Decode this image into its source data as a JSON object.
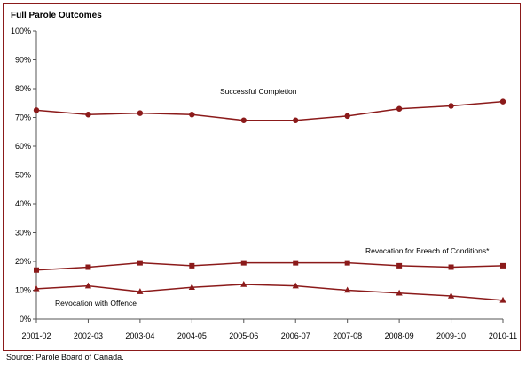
{
  "chart_data": {
    "type": "line",
    "title": "Full Parole Outcomes",
    "xlabel": "",
    "ylabel": "",
    "categories": [
      "2001-02",
      "2002-03",
      "2003-04",
      "2004-05",
      "2005-06",
      "2006-07",
      "2007-08",
      "2008-09",
      "2009-10",
      "2010-11"
    ],
    "y_ticks": [
      "0%",
      "10%",
      "20%",
      "30%",
      "40%",
      "50%",
      "60%",
      "70%",
      "80%",
      "90%",
      "100%"
    ],
    "ylim": [
      0,
      100
    ],
    "y_unit": "%",
    "grid": false,
    "legend": "none (series labelled directly on plot)",
    "line_color": "#8b1a1a",
    "series": [
      {
        "name": "Successful Completion",
        "marker": "circle",
        "values": [
          72.5,
          71,
          71.5,
          71,
          69,
          69,
          70.5,
          73,
          74,
          75.5
        ]
      },
      {
        "name": "Revocation for Breach of Conditions*",
        "marker": "square",
        "values": [
          17,
          18,
          19.5,
          18.5,
          19.5,
          19.5,
          19.5,
          18.5,
          18,
          18.5
        ]
      },
      {
        "name": "Revocation with Offence",
        "marker": "triangle",
        "values": [
          10.5,
          11.5,
          9.5,
          11,
          12,
          11.5,
          10,
          9,
          8,
          6.5
        ]
      }
    ]
  },
  "source": "Source:  Parole Board of Canada."
}
